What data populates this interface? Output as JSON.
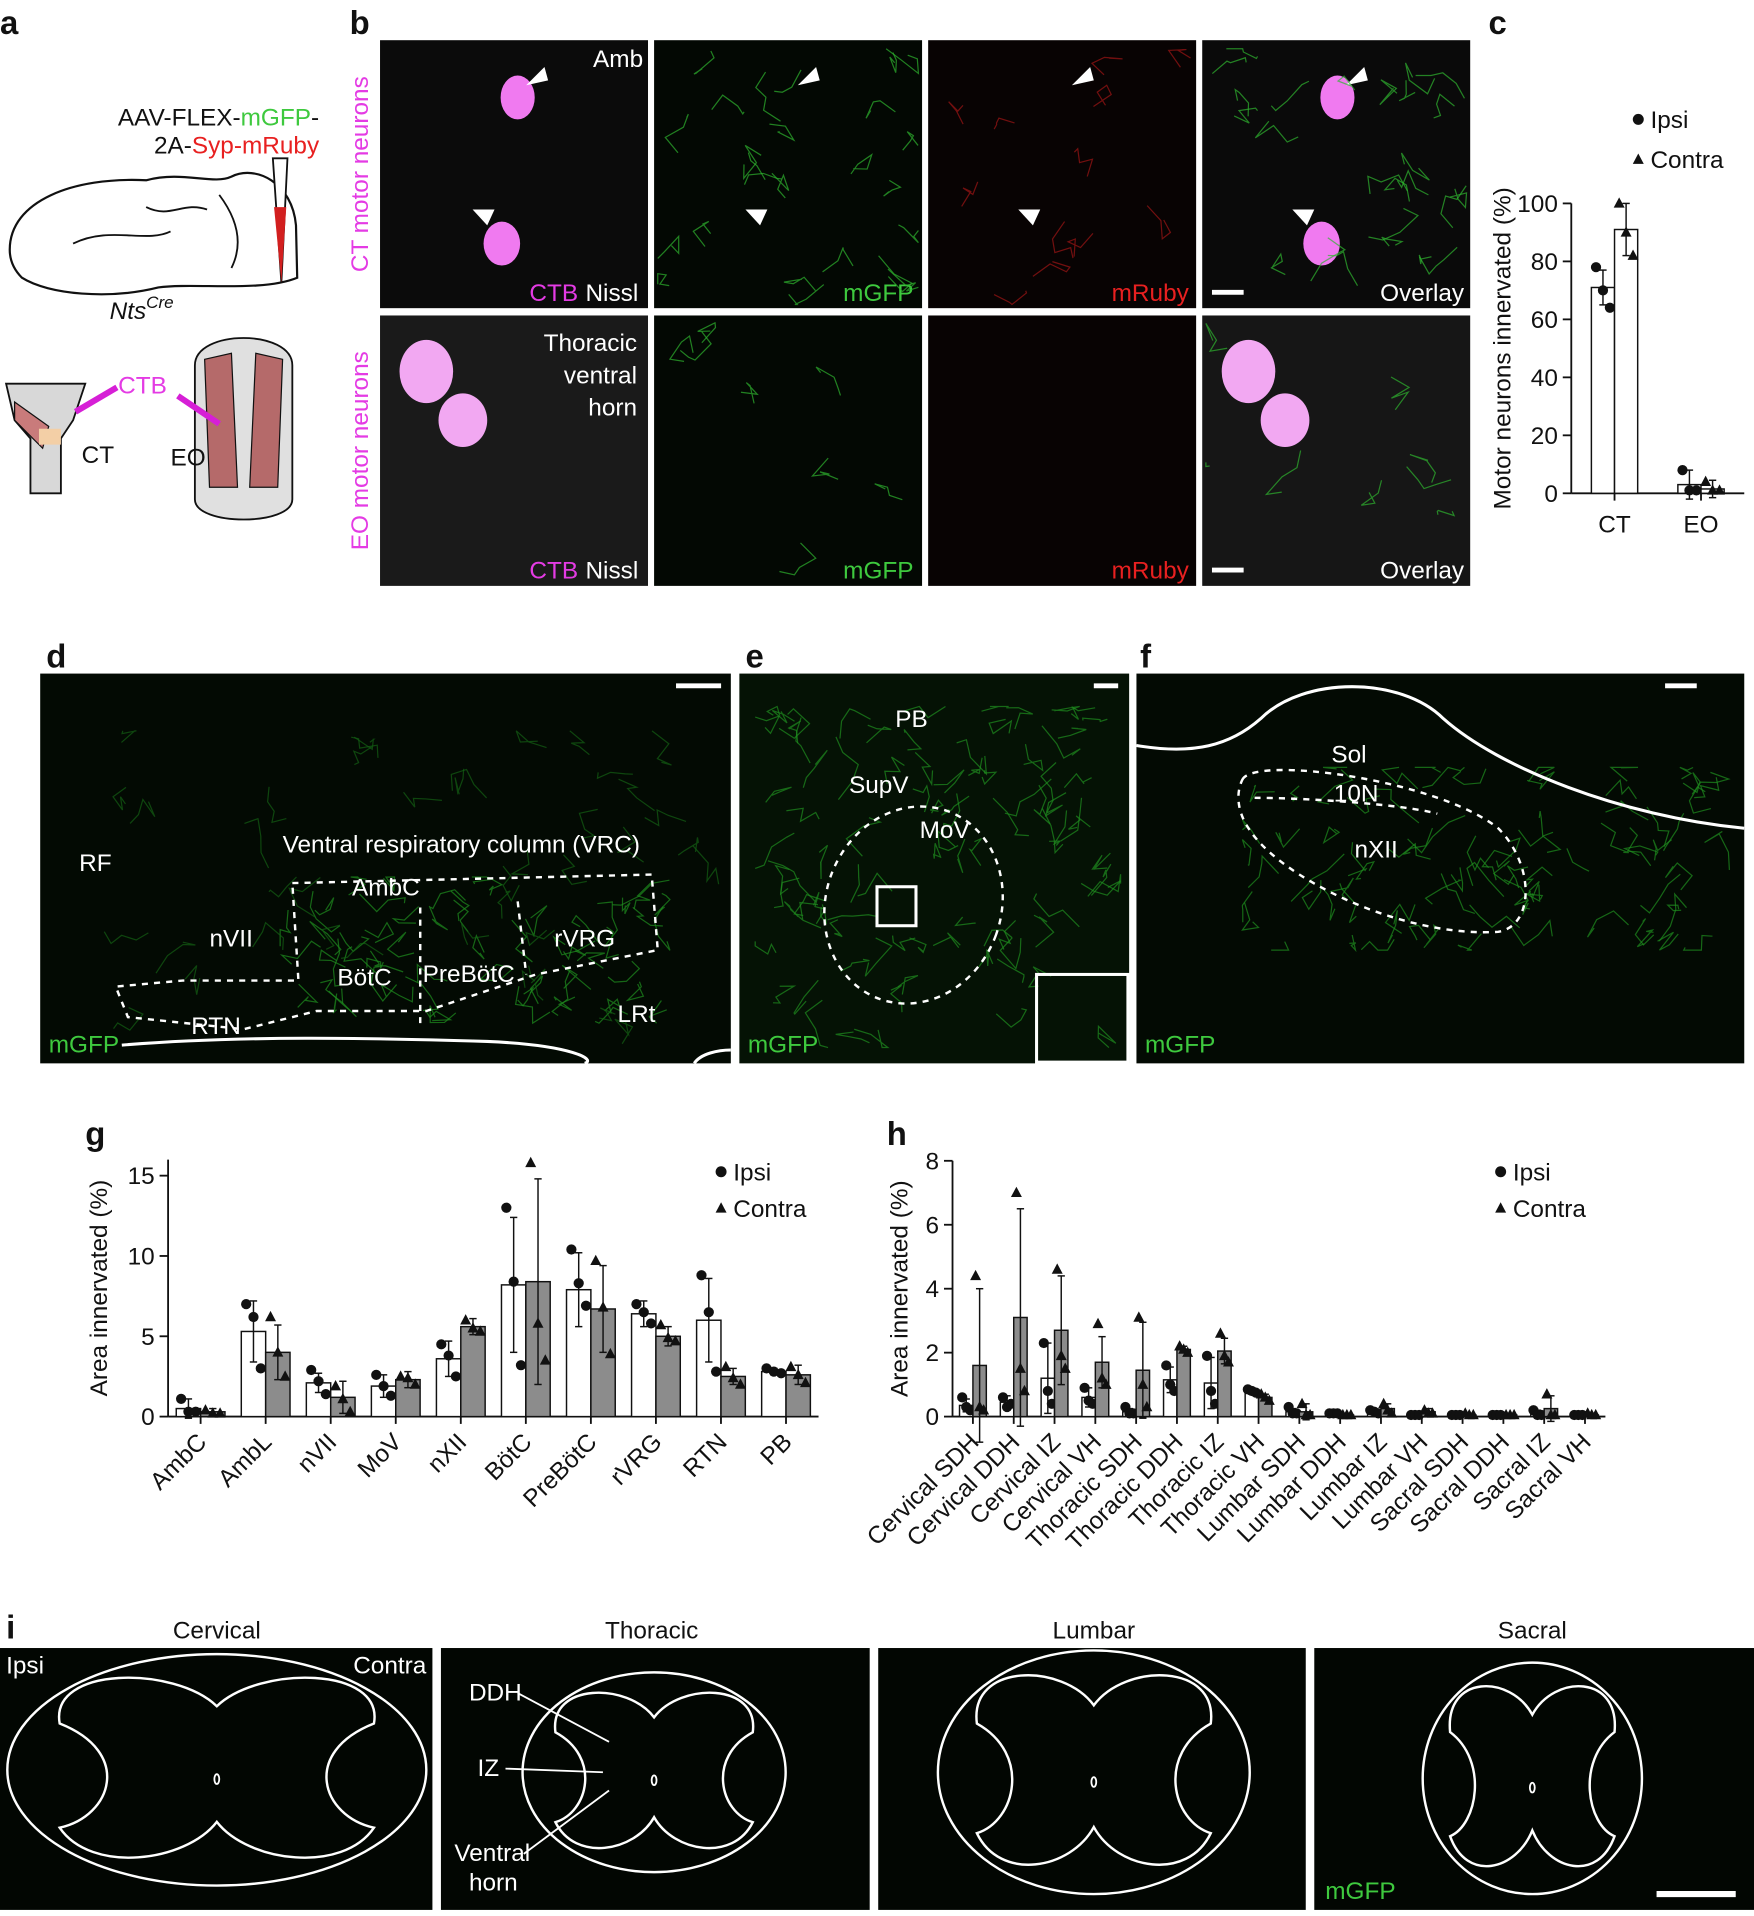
{
  "panel_labels": [
    "a",
    "b",
    "c",
    "d",
    "e",
    "f",
    "g",
    "h",
    "i"
  ],
  "panel_a": {
    "vector_line1": [
      "AAV-FLEX-",
      "mGFP",
      "-"
    ],
    "vector_line2": [
      "2A-",
      "Syp-mRuby"
    ],
    "mouse": "Nts",
    "mouse_sup": "Cre",
    "tracer": "CTB",
    "muscles": [
      "CT",
      "EO"
    ]
  },
  "panel_b": {
    "rows": [
      "CT motor neurons",
      "EO motor neurons"
    ],
    "region_1": "Amb",
    "region_2": [
      "Thoracic",
      "ventral",
      "horn"
    ],
    "stain": [
      "CTB",
      "Nissl"
    ],
    "channels": [
      "mGFP",
      "mRuby",
      "Overlay"
    ]
  },
  "panel_d": {
    "labels": [
      "RF",
      "Ventral respiratory column (VRC)",
      "AmbC",
      "nVII",
      "BötC",
      "PreBötC",
      "rVRG",
      "RTN",
      "LRt"
    ],
    "channel": "mGFP"
  },
  "panel_e": {
    "labels": [
      "PB",
      "SupV",
      "MoV"
    ],
    "channel": "mGFP"
  },
  "panel_f": {
    "labels": [
      "Sol",
      "10N",
      "nXII"
    ],
    "channel": "mGFP"
  },
  "panel_i": {
    "levels": [
      "Cervical",
      "Thoracic",
      "Lumbar",
      "Sacral"
    ],
    "sides": [
      "Ipsi",
      "Contra"
    ],
    "regions": [
      "DDH",
      "IZ",
      "Ventral",
      "horn"
    ],
    "channel": "mGFP"
  },
  "chart_data": [
    {
      "type": "bar",
      "y_label": "Motor neurons innervated (%)",
      "categories": [
        "CT",
        "EO"
      ],
      "ylim": [
        0,
        100
      ],
      "yticks": [
        0,
        20,
        40,
        60,
        80,
        100
      ],
      "series": [
        {
          "name": "Ipsi",
          "color": "#ffffff",
          "marker": "circle",
          "values": [
            71,
            3
          ],
          "errors": [
            6,
            5
          ],
          "points": [
            [
              78,
              70,
              64
            ],
            [
              8,
              1,
              1
            ]
          ]
        },
        {
          "name": "Contra",
          "color": "#ffffff",
          "marker": "triangle",
          "values": [
            91,
            1.5
          ],
          "errors": [
            9,
            3
          ],
          "points": [
            [
              100,
              90,
              82
            ],
            [
              4,
              1,
              1
            ]
          ]
        }
      ]
    },
    {
      "type": "bar",
      "y_label": "Area innervated (%)",
      "categories": [
        "AmbC",
        "AmbL",
        "nVII",
        "MoV",
        "nXII",
        "BötC",
        "PreBötC",
        "rVRG",
        "RTN",
        "PB"
      ],
      "ylim": [
        0,
        16
      ],
      "yticks": [
        0,
        5,
        10,
        15
      ],
      "series": [
        {
          "name": "Ipsi",
          "color": "#ffffff",
          "marker": "circle",
          "values": [
            0.5,
            5.3,
            2.1,
            1.9,
            3.6,
            8.2,
            7.9,
            6.4,
            6.0,
            2.8
          ],
          "errors": [
            0.6,
            1.9,
            0.6,
            0.7,
            1.1,
            4.2,
            2.3,
            0.8,
            2.6,
            0.2
          ],
          "points": [
            [
              1.1,
              0.3,
              0.3
            ],
            [
              7.0,
              6.2,
              3.0
            ],
            [
              2.9,
              2.2,
              1.4
            ],
            [
              2.6,
              1.9,
              1.3
            ],
            [
              4.5,
              3.8,
              2.5
            ],
            [
              13,
              8.4,
              3.2
            ],
            [
              10.4,
              8.3,
              6.9
            ],
            [
              7.0,
              6.5,
              5.8
            ],
            [
              8.8,
              6.5,
              2.8
            ],
            [
              3.0,
              2.8,
              2.7
            ]
          ]
        },
        {
          "name": "Contra",
          "color": "#8c8c8c",
          "marker": "triangle",
          "values": [
            0.3,
            4.0,
            1.2,
            2.3,
            5.6,
            8.4,
            6.7,
            5.0,
            2.5,
            2.6
          ],
          "errors": [
            0.2,
            1.7,
            1.0,
            0.5,
            0.5,
            6.4,
            2.7,
            0.6,
            0.5,
            0.6
          ],
          "points": [
            [
              0.4,
              0.2,
              0.2
            ],
            [
              6.2,
              4.0,
              2.5
            ],
            [
              1.9,
              1.1,
              0.3
            ],
            [
              2.5,
              2.4,
              2.0
            ],
            [
              6.0,
              5.5,
              5.3
            ],
            [
              15.8,
              5.8,
              3.5
            ],
            [
              9.7,
              6.8,
              3.9
            ],
            [
              5.7,
              4.9,
              4.7
            ],
            [
              3.1,
              2.4,
              2.0
            ],
            [
              3.1,
              2.6,
              2.1
            ]
          ]
        }
      ]
    },
    {
      "type": "bar",
      "y_label": "Area innervated (%)",
      "categories": [
        "Cervical SDH",
        "Cervical DDH",
        "Cervical IZ",
        "Cervical VH",
        "Thoracic SDH",
        "Thoracic DDH",
        "Thoracic IZ",
        "Thoracic VH",
        "Lumbar SDH",
        "Lumbar DDH",
        "Lumbar IZ",
        "Lumbar VH",
        "Sacral SDH",
        "Sacral DDH",
        "Sacral IZ",
        "Sacral VH"
      ],
      "ylim": [
        0,
        8
      ],
      "yticks": [
        0,
        2,
        4,
        6,
        8
      ],
      "series": [
        {
          "name": "Ipsi",
          "color": "#ffffff",
          "marker": "circle",
          "values": [
            0.35,
            0.45,
            1.2,
            0.6,
            0.15,
            1.15,
            1.05,
            0.8,
            0.15,
            0.1,
            0.15,
            0.05,
            0.05,
            0.05,
            0.1,
            0.05
          ],
          "errors": [
            0.2,
            0.2,
            1.1,
            0.3,
            0.1,
            0.4,
            0.8,
            0.1,
            0.1,
            0.05,
            0.05,
            0.05,
            0.05,
            0.05,
            0.1,
            0.05
          ],
          "points": [
            [
              0.6,
              0.3,
              0.2
            ],
            [
              0.6,
              0.3,
              0.4
            ],
            [
              2.3,
              0.8,
              0.4
            ],
            [
              0.9,
              0.5,
              0.4
            ],
            [
              0.3,
              0.1,
              0.1
            ],
            [
              1.6,
              1.0,
              0.8
            ],
            [
              1.9,
              0.8,
              0.4
            ],
            [
              0.85,
              0.8,
              0.75
            ],
            [
              0.3,
              0.1,
              0.1
            ],
            [
              0.1,
              0.1,
              0.1
            ],
            [
              0.2,
              0.15,
              0.1
            ],
            [
              0.05,
              0.05,
              0.05
            ],
            [
              0.05,
              0.05,
              0.05
            ],
            [
              0.05,
              0.05,
              0.05
            ],
            [
              0.2,
              0.05,
              0.05
            ],
            [
              0.05,
              0.05,
              0.05
            ]
          ]
        },
        {
          "name": "Contra",
          "color": "#8c8c8c",
          "marker": "triangle",
          "values": [
            1.6,
            3.1,
            2.7,
            1.7,
            1.45,
            2.1,
            2.05,
            0.6,
            0.15,
            0.05,
            0.25,
            0.15,
            0.05,
            0.05,
            0.25,
            0.05
          ],
          "errors": [
            2.4,
            3.4,
            1.7,
            0.8,
            1.5,
            0.1,
            0.4,
            0.1,
            0.25,
            0.05,
            0.15,
            0.1,
            0.05,
            0.05,
            0.4,
            0.05
          ],
          "points": [
            [
              4.4,
              0.3,
              0.2
            ],
            [
              7.0,
              1.5,
              0.8
            ],
            [
              4.6,
              1.9,
              1.5
            ],
            [
              2.9,
              1.2,
              1.0
            ],
            [
              3.1,
              1.0,
              0.3
            ],
            [
              2.2,
              2.1,
              2.0
            ],
            [
              2.6,
              1.9,
              1.7
            ],
            [
              0.7,
              0.6,
              0.5
            ],
            [
              0.4,
              0.05,
              0.05
            ],
            [
              0.05,
              0.05,
              0.05
            ],
            [
              0.4,
              0.2,
              0.1
            ],
            [
              0.2,
              0.1,
              0.1
            ],
            [
              0.1,
              0.05,
              0.05
            ],
            [
              0.05,
              0.05,
              0.05
            ],
            [
              0.7,
              0.05,
              0.05
            ],
            [
              0.1,
              0.05,
              0.05
            ]
          ]
        }
      ]
    }
  ]
}
